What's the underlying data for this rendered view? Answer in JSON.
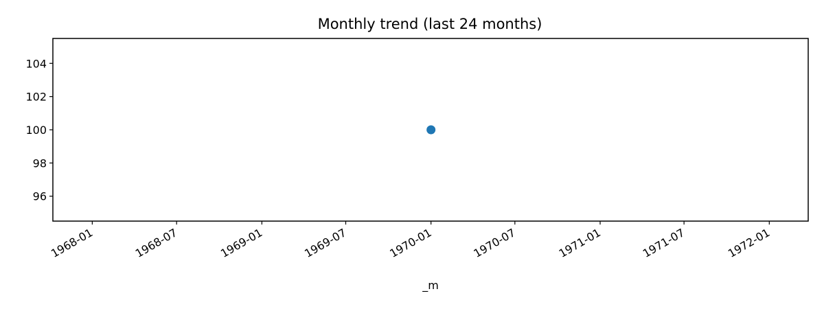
{
  "chart_data": {
    "type": "scatter",
    "title": "Monthly trend (last 24 months)",
    "xlabel": "_m",
    "ylabel": "",
    "x_type": "date",
    "xlim": [
      "1967-10-08",
      "1972-03-25"
    ],
    "ylim": [
      94.5,
      105.5
    ],
    "x_ticks": [
      "1968-01",
      "1968-07",
      "1969-01",
      "1969-07",
      "1970-01",
      "1970-07",
      "1971-01",
      "1971-07",
      "1972-01"
    ],
    "x_tick_dates": [
      "1968-01-01",
      "1968-07-01",
      "1969-01-01",
      "1969-07-01",
      "1970-01-01",
      "1970-07-01",
      "1971-01-01",
      "1971-07-01",
      "1972-01-01"
    ],
    "y_ticks": [
      96,
      98,
      100,
      102,
      104
    ],
    "grid": false,
    "series": [
      {
        "color": "#1f77b4",
        "points": [
          {
            "x": "1970-01-01",
            "y": 100
          }
        ]
      }
    ]
  }
}
